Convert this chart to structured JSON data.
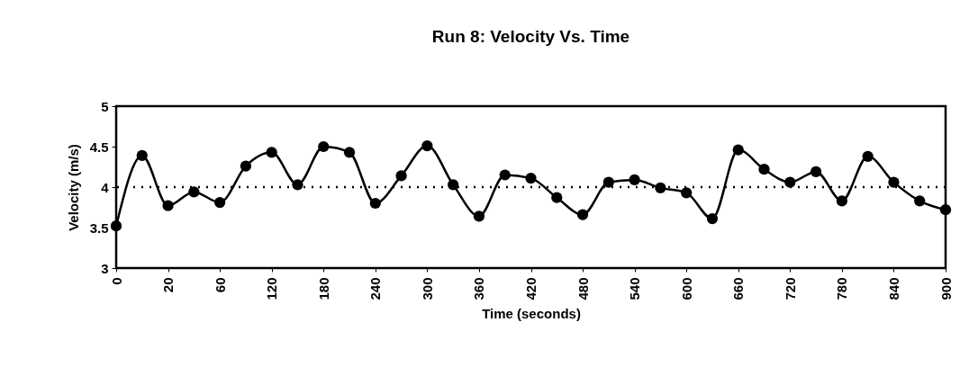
{
  "chart_data": {
    "type": "line",
    "title": "Run 8: Velocity Vs. Time",
    "xlabel": "Time (seconds)",
    "ylabel": "Velocity (m/s)",
    "categories": [
      "0",
      null,
      "20",
      null,
      "60",
      null,
      "120",
      null,
      "180",
      null,
      "240",
      null,
      "300",
      null,
      "360",
      null,
      "420",
      null,
      "480",
      null,
      "540",
      null,
      "600",
      null,
      "660",
      null,
      "720",
      null,
      "780",
      null,
      "840",
      null,
      "900"
    ],
    "series": [
      {
        "color": "#000000",
        "values": [
          3.52,
          4.39,
          3.77,
          3.94,
          3.81,
          4.26,
          4.43,
          4.03,
          4.5,
          4.43,
          3.8,
          4.14,
          4.51,
          4.03,
          3.64,
          4.15,
          4.11,
          3.87,
          3.66,
          4.06,
          4.09,
          3.99,
          3.93,
          3.61,
          4.46,
          4.22,
          4.06,
          4.19,
          3.83,
          4.38,
          4.06,
          3.83,
          3.72
        ]
      }
    ],
    "ylim": [
      3,
      5
    ],
    "yticks": [
      3,
      3.5,
      4,
      4.5,
      5
    ],
    "grid": false,
    "marker": "circle",
    "line_style": "solid",
    "ref_lines": [
      {
        "axis": "y",
        "value": 4,
        "label": null,
        "color": "#000000",
        "line_style": "dotted"
      }
    ]
  }
}
